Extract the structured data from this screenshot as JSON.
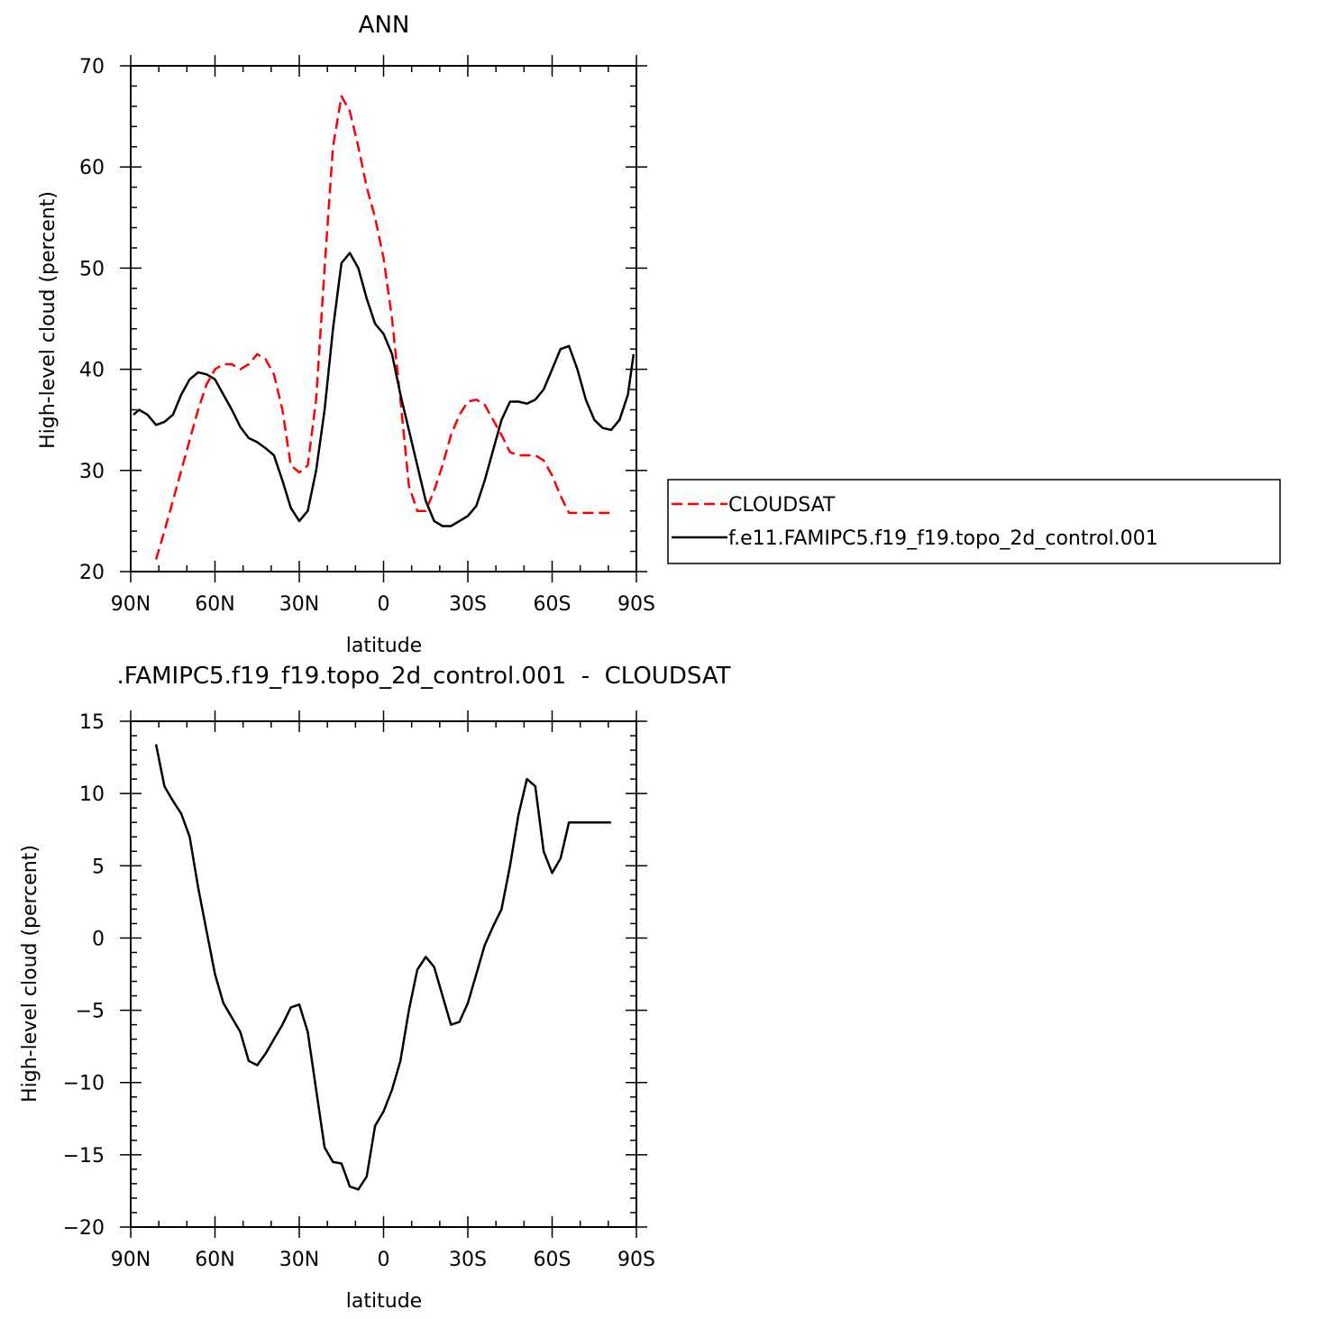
{
  "chart_data": [
    {
      "type": "line",
      "title": "ANN",
      "xlabel": "latitude",
      "ylabel": "High-level cloud (percent)",
      "xlim": [
        -90,
        90
      ],
      "ylim": [
        20,
        70
      ],
      "xticks": [
        -90,
        -60,
        -30,
        0,
        30,
        60,
        90
      ],
      "xtick_labels": [
        "90N",
        "60N",
        "30N",
        "0",
        "30S",
        "60S",
        "90S"
      ],
      "yticks": [
        20,
        30,
        40,
        50,
        60,
        70
      ],
      "ytick_labels": [
        "20",
        "30",
        "40",
        "50",
        "60",
        "70"
      ],
      "legend_placement": "right",
      "series": [
        {
          "name": "CLOUDSAT",
          "color": "#ff0000",
          "dash": "dashed",
          "x": [
            -81,
            -78,
            -75,
            -72,
            -69,
            -66,
            -63,
            -60,
            -57,
            -54,
            -51,
            -48,
            -45,
            -42,
            -39,
            -36,
            -33,
            -30,
            -27,
            -24,
            -21,
            -18,
            -15,
            -12,
            -9,
            -6,
            -3,
            0,
            3,
            6,
            9,
            12,
            15,
            18,
            21,
            24,
            27,
            30,
            33,
            36,
            39,
            42,
            45,
            48,
            51,
            54,
            57,
            60,
            63,
            66,
            69,
            72,
            75,
            78,
            81
          ],
          "y": [
            21.2,
            24.0,
            27.0,
            30.0,
            33.0,
            36.0,
            38.5,
            40.0,
            40.5,
            40.5,
            40.0,
            40.5,
            41.5,
            41.0,
            39.5,
            36.0,
            30.5,
            29.8,
            30.5,
            37.0,
            50.0,
            62.0,
            67.0,
            65.5,
            62.0,
            58.0,
            55.0,
            51.0,
            45.0,
            37.0,
            28.5,
            26.0,
            26.0,
            28.0,
            30.5,
            33.5,
            35.5,
            36.8,
            37.0,
            36.5,
            35.0,
            33.5,
            31.8,
            31.5,
            31.5,
            31.5,
            31.0,
            29.5,
            27.5,
            25.8,
            25.8,
            25.8,
            25.8,
            25.8,
            25.8
          ]
        },
        {
          "name": "f.e11.FAMIPC5.f19_f19.topo_2d_control.001",
          "color": "#000000",
          "dash": "solid",
          "x": [
            -89,
            -87,
            -84,
            -81,
            -78,
            -75,
            -72,
            -69,
            -66,
            -63,
            -60,
            -57,
            -54,
            -51,
            -48,
            -45,
            -42,
            -39,
            -36,
            -33,
            -30,
            -27,
            -24,
            -21,
            -18,
            -15,
            -12,
            -9,
            -6,
            -3,
            0,
            3,
            6,
            9,
            12,
            15,
            18,
            21,
            24,
            27,
            30,
            33,
            36,
            39,
            42,
            45,
            48,
            51,
            54,
            57,
            60,
            63,
            66,
            69,
            72,
            75,
            78,
            81,
            84,
            87,
            89
          ],
          "y": [
            35.5,
            36.0,
            35.5,
            34.5,
            34.8,
            35.5,
            37.5,
            39.0,
            39.7,
            39.5,
            39.0,
            37.5,
            36.0,
            34.3,
            33.2,
            32.8,
            32.2,
            31.5,
            29.0,
            26.3,
            25.0,
            26.0,
            30.0,
            36.0,
            44.0,
            50.5,
            51.5,
            50.0,
            47.0,
            44.5,
            43.5,
            41.5,
            37.5,
            34.0,
            30.5,
            27.0,
            25.0,
            24.5,
            24.5,
            25.0,
            25.5,
            26.5,
            29.0,
            32.0,
            35.0,
            36.8,
            36.8,
            36.6,
            37.0,
            38.0,
            40.0,
            42.0,
            42.3,
            40.0,
            37.0,
            35.0,
            34.2,
            34.0,
            35.0,
            37.5,
            41.5
          ]
        }
      ]
    },
    {
      "type": "line",
      "title": ".FAMIPC5.f19_f19.topo_2d_control.001  -  CLOUDSAT",
      "xlabel": "latitude",
      "ylabel": "High-level cloud (percent)",
      "xlim": [
        -90,
        90
      ],
      "ylim": [
        -20,
        15
      ],
      "xticks": [
        -90,
        -60,
        -30,
        0,
        30,
        60,
        90
      ],
      "xtick_labels": [
        "90N",
        "60N",
        "30N",
        "0",
        "30S",
        "60S",
        "90S"
      ],
      "yticks": [
        -20,
        -15,
        -10,
        -5,
        0,
        5,
        10,
        15
      ],
      "ytick_labels": [
        "−20",
        "−15",
        "−10",
        "−5",
        "0",
        "5",
        "10",
        "15"
      ],
      "series": [
        {
          "color": "#000000",
          "dash": "solid",
          "x": [
            -81,
            -78,
            -75,
            -72,
            -69,
            -66,
            -63,
            -60,
            -57,
            -54,
            -51,
            -48,
            -45,
            -42,
            -39,
            -36,
            -33,
            -30,
            -27,
            -24,
            -21,
            -18,
            -15,
            -12,
            -9,
            -6,
            -3,
            0,
            3,
            6,
            9,
            12,
            15,
            18,
            21,
            24,
            27,
            30,
            33,
            36,
            39,
            42,
            45,
            48,
            51,
            54,
            57,
            60,
            63,
            66,
            69,
            72,
            75,
            78,
            81
          ],
          "y": [
            13.4,
            10.5,
            9.5,
            8.6,
            7.0,
            3.5,
            0.5,
            -2.5,
            -4.5,
            -5.5,
            -6.5,
            -8.5,
            -8.8,
            -8.0,
            -7.0,
            -6.0,
            -4.8,
            -4.6,
            -6.5,
            -10.5,
            -14.5,
            -15.5,
            -15.6,
            -17.2,
            -17.4,
            -16.5,
            -13.0,
            -12.0,
            -10.5,
            -8.5,
            -5.0,
            -2.2,
            -1.3,
            -2.0,
            -4.0,
            -6.0,
            -5.8,
            -4.5,
            -2.5,
            -0.5,
            0.8,
            2.0,
            5.0,
            8.5,
            11.0,
            10.5,
            6.0,
            4.5,
            5.5,
            8.0,
            8.0,
            8.0,
            8.0,
            8.0,
            8.0
          ]
        }
      ]
    }
  ]
}
